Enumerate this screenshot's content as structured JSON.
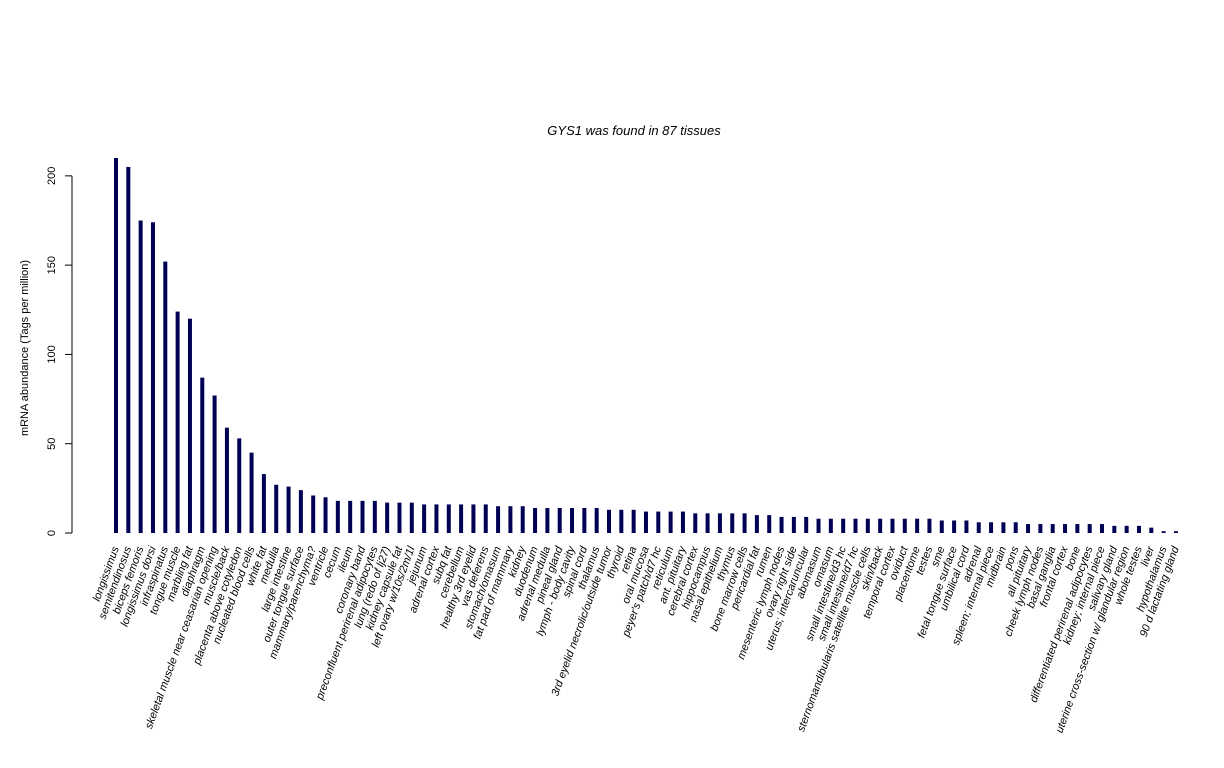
{
  "chart_data": {
    "type": "bar",
    "title": "GYS1  was found in  87  tissues",
    "xlabel": "",
    "ylabel": "mRNA abundance (Tags per million)",
    "ylim": [
      0,
      210
    ],
    "yticks": [
      0,
      50,
      100,
      150,
      200
    ],
    "colors": {
      "bar": "#000055",
      "axis": "#000000",
      "background": "#ffffff"
    },
    "grid": false,
    "categories": [
      "longissimus",
      "semitendinosus",
      "biceps femoris",
      "longissimus dorsi",
      "infraspinatus",
      "tongue muscle",
      "marbling fat",
      "diaphragm",
      "skeletal muscle near ceasarian opening",
      "muscle/back",
      "placenta above cotyledon",
      "nucleated blood cells",
      "white fat",
      "medulla",
      "large intestine",
      "outer tongue surface",
      "mammary/parenchyma?",
      "ventricle",
      "cecum",
      "ileum",
      "coronary band",
      "preconfluent perirenal adipocytes",
      "lung (redo of lj27)",
      "kidney capsule fat",
      "left ovary w/10s/2m/1l",
      "jejunum",
      "adrenal cortex",
      "subq fat",
      "cerebellum",
      "healthy 3rd eyelid",
      "vas deferens",
      "stomach/omasum",
      "fat pad of mammary",
      "kidney",
      "duodenum",
      "adrenal medulla",
      "pineal gland",
      "lymph - body cavity",
      "spinal cord",
      "thalamus",
      "3rd eyelid necrolic/outside tumor",
      "thyroid",
      "retina",
      "oral mucosa",
      "peyer's patch/d7 hc",
      "reticulum",
      "ant. pituitary",
      "cerebral cortex",
      "hippocampus",
      "nasal epithelium",
      "thymus",
      "bone marrow cells",
      "pericardial fat",
      "rumen",
      "mesenteric lymph nodes",
      "ovary right side",
      "uterus; intercaruncular",
      "abomasum",
      "omasum",
      "small intestine/d3 hc",
      "small intestine/d7 hc",
      "sternomandibularis satellite muscle cells",
      "skin/back",
      "temporal cortex",
      "oviduct",
      "placentome",
      "testes",
      "sme",
      "fetal tongue surface",
      "umbilical cord",
      "adrenal",
      "spleen; internal piece",
      "midbrain",
      "pons",
      "all pituitary",
      "cheek lymph nodes",
      "basal ganglia",
      "frontal cortex",
      "bone",
      "differentiated perirenal adipocytes",
      "kidney; internal piece",
      "salivary gland",
      "uterine cross-section w/ glandular region",
      "whole testes",
      "liver",
      "hypothalamus",
      "90 d lactating gland"
    ],
    "values": [
      210,
      205,
      175,
      174,
      152,
      124,
      120,
      87,
      77,
      59,
      53,
      45,
      33,
      27,
      26,
      24,
      21,
      20,
      18,
      18,
      18,
      18,
      17,
      17,
      17,
      16,
      16,
      16,
      16,
      16,
      16,
      15,
      15,
      15,
      14,
      14,
      14,
      14,
      14,
      14,
      13,
      13,
      13,
      12,
      12,
      12,
      12,
      11,
      11,
      11,
      11,
      11,
      10,
      10,
      9,
      9,
      9,
      8,
      8,
      8,
      8,
      8,
      8,
      8,
      8,
      8,
      8,
      7,
      7,
      7,
      6,
      6,
      6,
      6,
      5,
      5,
      5,
      5,
      5,
      5,
      5,
      4,
      4,
      4,
      3,
      1,
      1
    ]
  }
}
